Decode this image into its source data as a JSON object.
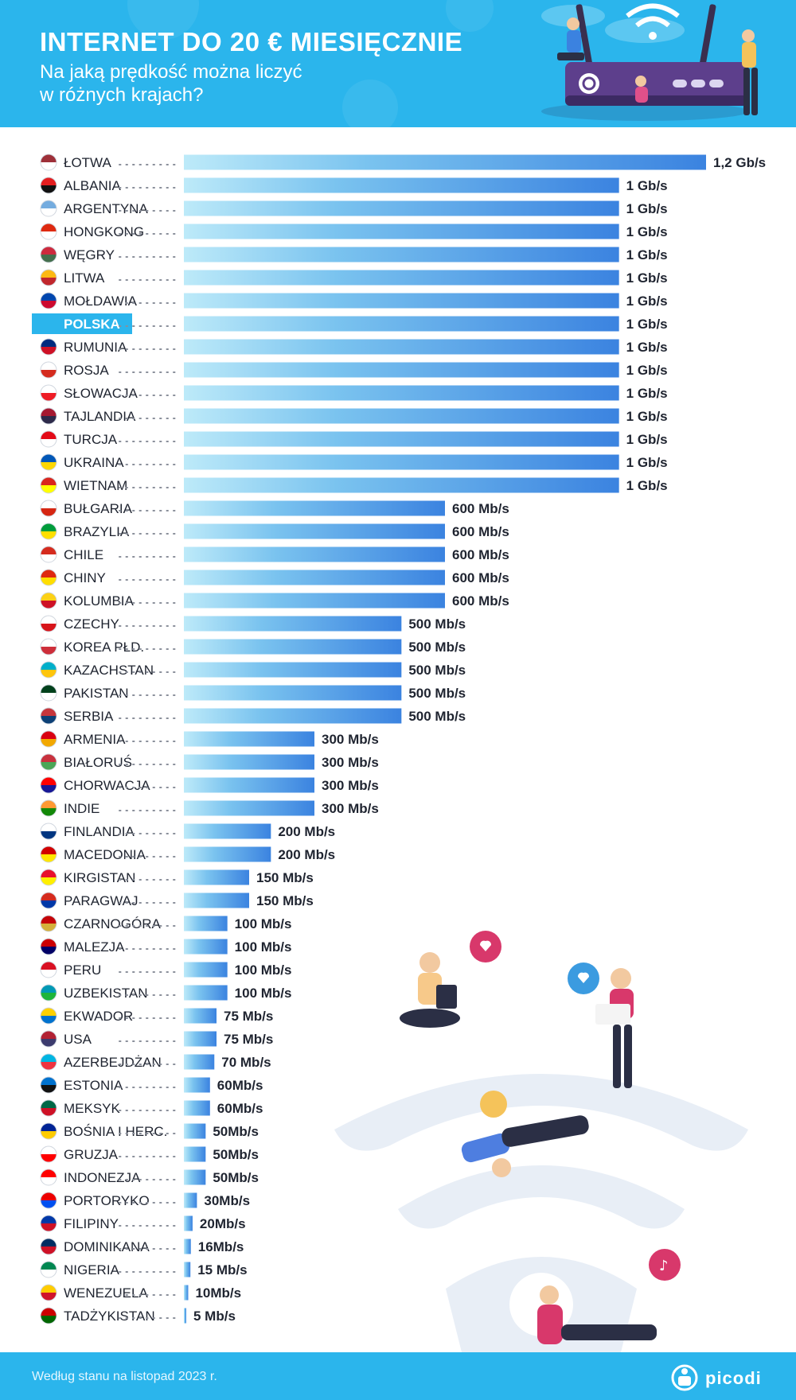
{
  "header": {
    "title": "INTERNET DO 20 € MIESIĘCZNIE",
    "subtitle_line1": "Na jaką prędkość można liczyć",
    "subtitle_line2": "w różnych krajach?"
  },
  "footer": {
    "note": "Według stanu na listopad 2023 r.",
    "logo_text": "picodi"
  },
  "colors": {
    "accent": "#2bb5ec",
    "bar_start": "#bdeaf9",
    "bar_end": "#3b83e0",
    "text": "#1f2430",
    "highlight": "#2bb5ec"
  },
  "chart_data": {
    "type": "bar",
    "orientation": "horizontal",
    "unit": "Mb/s",
    "highlight_category": "POLSKA",
    "categories": [
      "ŁOTWA",
      "ALBANIA",
      "ARGENTYNA",
      "HONGKONG",
      "WĘGRY",
      "LITWA",
      "MOŁDAWIA",
      "POLSKA",
      "RUMUNIA",
      "ROSJA",
      "SŁOWACJA",
      "TAJLANDIA",
      "TURCJA",
      "UKRAINA",
      "WIETNAM",
      "BUŁGARIA",
      "BRAZYLIA",
      "CHILE",
      "CHINY",
      "KOLUMBIA",
      "CZECHY",
      "KOREA PŁD.",
      "KAZACHSTAN",
      "PAKISTAN",
      "SERBIA",
      "ARMENIA",
      "BIAŁORUŚ",
      "CHORWACJA",
      "INDIE",
      "FINLANDIA",
      "MACEDONIA",
      "KIRGISTAN",
      "PARAGWAJ",
      "CZARNOGÓRA",
      "MALEZJA",
      "PERU",
      "UZBEKISTAN",
      "EKWADOR",
      "USA",
      "AZERBEJDŻAN",
      "ESTONIA",
      "MEKSYK",
      "BOŚNIA I HERC.",
      "GRUZJA",
      "INDONEZJA",
      "PORTORYKO",
      "FILIPINY",
      "DOMINIKANA",
      "NIGERIA",
      "WENEZUELA",
      "TADŻYKISTAN"
    ],
    "values": [
      1200,
      1000,
      1000,
      1000,
      1000,
      1000,
      1000,
      1000,
      1000,
      1000,
      1000,
      1000,
      1000,
      1000,
      1000,
      600,
      600,
      600,
      600,
      600,
      500,
      500,
      500,
      500,
      500,
      300,
      300,
      300,
      300,
      200,
      200,
      150,
      150,
      100,
      100,
      100,
      100,
      75,
      75,
      70,
      60,
      60,
      50,
      50,
      50,
      30,
      20,
      16,
      15,
      10,
      5
    ],
    "value_labels": [
      "1,2 Gb/s",
      "1 Gb/s",
      "1 Gb/s",
      "1 Gb/s",
      "1 Gb/s",
      "1 Gb/s",
      "1 Gb/s",
      "1 Gb/s",
      "1 Gb/s",
      "1 Gb/s",
      "1 Gb/s",
      "1 Gb/s",
      "1 Gb/s",
      "1 Gb/s",
      "1 Gb/s",
      "600 Mb/s",
      "600 Mb/s",
      "600 Mb/s",
      "600 Mb/s",
      "600 Mb/s",
      "500 Mb/s",
      "500 Mb/s",
      "500 Mb/s",
      "500 Mb/s",
      "500 Mb/s",
      "300 Mb/s",
      "300 Mb/s",
      "300 Mb/s",
      "300 Mb/s",
      "200 Mb/s",
      "200 Mb/s",
      "150 Mb/s",
      "150 Mb/s",
      "100 Mb/s",
      "100 Mb/s",
      "100 Mb/s",
      "100 Mb/s",
      "75 Mb/s",
      "75 Mb/s",
      "70 Mb/s",
      "60Mb/s",
      "60Mb/s",
      "50Mb/s",
      "50Mb/s",
      "50Mb/s",
      "30Mb/s",
      "20Mb/s",
      "16Mb/s",
      "15 Mb/s",
      "10Mb/s",
      "5 Mb/s"
    ],
    "flag_colors": [
      [
        "#9e3039",
        "#ffffff"
      ],
      [
        "#e41e20",
        "#111111"
      ],
      [
        "#74acdf",
        "#ffffff"
      ],
      [
        "#de2910",
        "#ffffff"
      ],
      [
        "#cd2a3e",
        "#436f4d"
      ],
      [
        "#fdb913",
        "#c1272d"
      ],
      [
        "#0046ae",
        "#cc092f"
      ],
      [
        "#ffffff",
        "#dc143c"
      ],
      [
        "#002b7f",
        "#ce1126"
      ],
      [
        "#ffffff",
        "#d52b1e"
      ],
      [
        "#ffffff",
        "#ee1c25"
      ],
      [
        "#a51931",
        "#2d2a4a"
      ],
      [
        "#e30a17",
        "#ffffff"
      ],
      [
        "#0057b7",
        "#ffd700"
      ],
      [
        "#da251d",
        "#ffff00"
      ],
      [
        "#ffffff",
        "#d62612"
      ],
      [
        "#009c3b",
        "#ffdf00"
      ],
      [
        "#d52b1e",
        "#ffffff"
      ],
      [
        "#de2910",
        "#ffde00"
      ],
      [
        "#fcd116",
        "#ce1126"
      ],
      [
        "#ffffff",
        "#d7141a"
      ],
      [
        "#ffffff",
        "#cd2e3a"
      ],
      [
        "#00afca",
        "#fec50c"
      ],
      [
        "#01411c",
        "#ffffff"
      ],
      [
        "#c6363c",
        "#0c4076"
      ],
      [
        "#d90012",
        "#f2a800"
      ],
      [
        "#c8313e",
        "#4aa657"
      ],
      [
        "#ff0000",
        "#171796"
      ],
      [
        "#ff9933",
        "#138808"
      ],
      [
        "#ffffff",
        "#003580"
      ],
      [
        "#d20000",
        "#ffe600"
      ],
      [
        "#e8112d",
        "#ffef00"
      ],
      [
        "#d52b1e",
        "#0038a8"
      ],
      [
        "#c40308",
        "#d4af3a"
      ],
      [
        "#cc0001",
        "#010066"
      ],
      [
        "#d91023",
        "#ffffff"
      ],
      [
        "#0099b5",
        "#1eb53a"
      ],
      [
        "#ffd100",
        "#0072ce"
      ],
      [
        "#b22234",
        "#3c3b6e"
      ],
      [
        "#00b5e2",
        "#ef3340"
      ],
      [
        "#0072ce",
        "#111111"
      ],
      [
        "#006847",
        "#ce1126"
      ],
      [
        "#002395",
        "#fecb00"
      ],
      [
        "#ffffff",
        "#ff0000"
      ],
      [
        "#ff0000",
        "#ffffff"
      ],
      [
        "#ed0000",
        "#0050f0"
      ],
      [
        "#0038a8",
        "#ce1126"
      ],
      [
        "#002d62",
        "#ce1126"
      ],
      [
        "#008751",
        "#ffffff"
      ],
      [
        "#ffcc00",
        "#cf142b"
      ],
      [
        "#cc0000",
        "#006600"
      ]
    ]
  }
}
